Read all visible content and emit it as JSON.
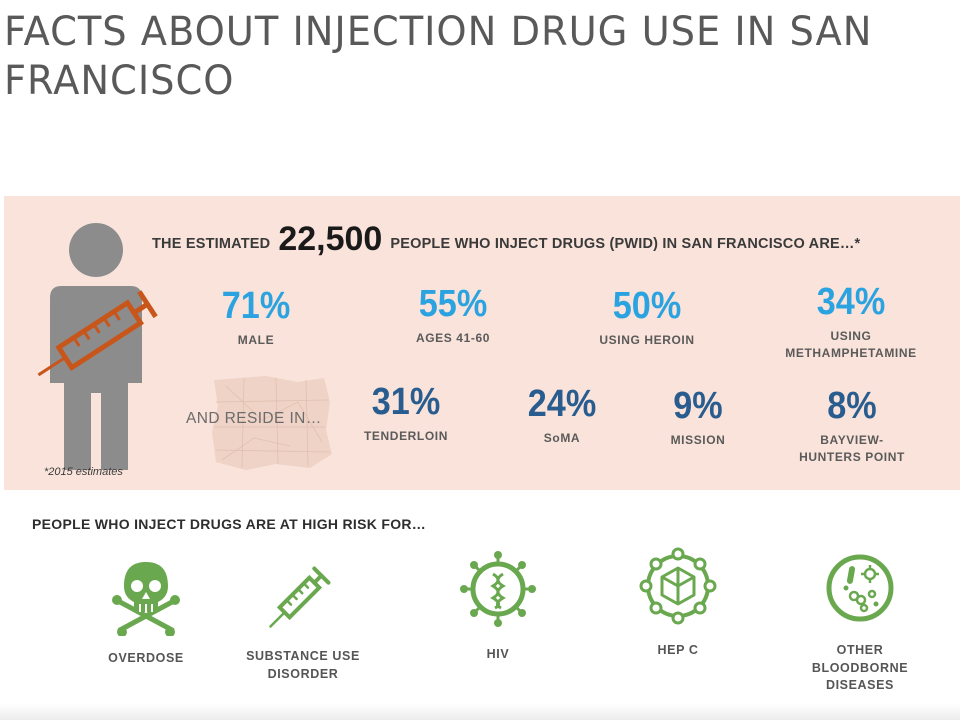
{
  "slide_title": "FACTS ABOUT INJECTION DRUG USE IN SAN FRANCISCO",
  "colors": {
    "panel_bg": "#f9e3da",
    "stat_light_blue": "#2ba3e0",
    "stat_dark_blue": "#2a5d8f",
    "icon_green": "#6aa84f",
    "syringe_orange": "#c8561b"
  },
  "infographic": {
    "headline": {
      "before": "THE ESTIMATED",
      "number": "22,500",
      "after": "PEOPLE WHO INJECT DRUGS (PWID) IN SAN FRANCISCO ARE…*"
    },
    "demographics": [
      {
        "value": "71%",
        "label_lines": [
          "MALE"
        ]
      },
      {
        "value": "55%",
        "label_lines": [
          "AGES 41-60"
        ]
      },
      {
        "value": "50%",
        "label_lines": [
          "USING HEROIN"
        ]
      },
      {
        "value": "34%",
        "label_lines": [
          "USING",
          "METHAMPHETAMINE"
        ]
      }
    ],
    "reside_label": "AND RESIDE IN…",
    "neighborhoods": [
      {
        "value": "31%",
        "label_lines": [
          "TENDERLOIN"
        ]
      },
      {
        "value": "24%",
        "label_lines": [
          "SoMA"
        ]
      },
      {
        "value": "9%",
        "label_lines": [
          "MISSION"
        ]
      },
      {
        "value": "8%",
        "label_lines": [
          "BAYVIEW-",
          "HUNTERS POINT"
        ]
      }
    ],
    "footnote": "*2015 estimates",
    "risk_heading": "PEOPLE WHO INJECT DRUGS ARE AT HIGH RISK FOR…",
    "risks": [
      {
        "icon": "skull-crossbones-icon",
        "label_lines": [
          "OVERDOSE"
        ]
      },
      {
        "icon": "syringe-icon",
        "label_lines": [
          "SUBSTANCE USE",
          "DISORDER"
        ]
      },
      {
        "icon": "hiv-virus-icon",
        "label_lines": [
          "HIV"
        ]
      },
      {
        "icon": "hepatitis-c-virus-icon",
        "label_lines": [
          "HEP C"
        ]
      },
      {
        "icon": "bacteria-petri-dish-icon",
        "label_lines": [
          "OTHER",
          "BLOODBORNE",
          "DISEASES"
        ]
      }
    ]
  }
}
